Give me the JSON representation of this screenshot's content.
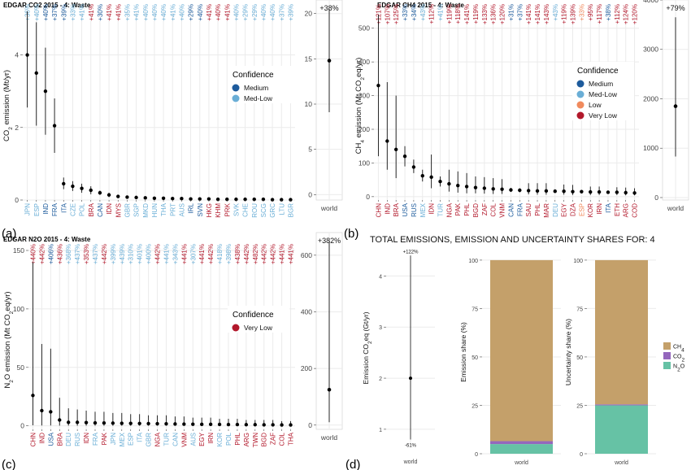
{
  "chart_data": [
    {
      "id": "a",
      "type": "scatter",
      "panel_letter": "(a)",
      "title": "EDGAR CO2 2015 - 4: Waste",
      "ylabel_parts": [
        "CO",
        "2",
        " emission (Mt/yr)"
      ],
      "ylim": [
        0,
        5.2
      ],
      "yticks": [
        0,
        2,
        4
      ],
      "legend": {
        "title": "Confidence",
        "entries": [
          {
            "name": "Medium",
            "color": "#1d5b9c"
          },
          {
            "name": "Med-Low",
            "color": "#6aaed6"
          }
        ]
      },
      "categories": [
        "JPN",
        "ESP",
        "IND",
        "FRA",
        "ITA",
        "CZE",
        "POL",
        "BRA",
        "CAN",
        "IDN",
        "MYS",
        "GBR",
        "SGP",
        "MKD",
        "HUN",
        "THA",
        "PRT",
        "AUS",
        "IRL",
        "SVN",
        "HKG",
        "KHM",
        "PRK",
        "SVK",
        "CHE",
        "ROU",
        "SCG",
        "GRC",
        "LTU",
        "BGR"
      ],
      "cat_colors": [
        "#6aaed6",
        "#6aaed6",
        "#1d5b9c",
        "#1d5b9c",
        "#1d5b9c",
        "#6aaed6",
        "#6aaed6",
        "#b2182b",
        "#1d5b9c",
        "#b2182b",
        "#b2182b",
        "#6aaed6",
        "#6aaed6",
        "#6aaed6",
        "#6aaed6",
        "#6aaed6",
        "#6aaed6",
        "#6aaed6",
        "#1d5b9c",
        "#1d5b9c",
        "#b2182b",
        "#b2182b",
        "#b2182b",
        "#6aaed6",
        "#6aaed6",
        "#6aaed6",
        "#6aaed6",
        "#6aaed6",
        "#6aaed6",
        "#6aaed6"
      ],
      "labels": [
        "+36%",
        "+40%",
        "+40%",
        "+37%",
        "+39%",
        "+33%",
        "+41%",
        "+41%",
        "+30%",
        "+41%",
        "+41%",
        "+35%",
        "+41%",
        "+40%",
        "+40%",
        "+40%",
        "+41%",
        "+40%",
        "+29%",
        "+40%",
        "+41%",
        "+40%",
        "+41%",
        "+40%",
        "+29%",
        "+29%",
        "+40%",
        "+40%",
        "+37%",
        "+39%"
      ],
      "values": [
        4.0,
        3.5,
        3.0,
        2.05,
        0.45,
        0.38,
        0.32,
        0.27,
        0.2,
        0.14,
        0.1,
        0.08,
        0.07,
        0.06,
        0.05,
        0.05,
        0.04,
        0.04,
        0.03,
        0.03,
        0.03,
        0.02,
        0.02,
        0.02,
        0.02,
        0.02,
        0.02,
        0.01,
        0.01,
        0.01
      ],
      "lower": [
        2.55,
        2.05,
        1.8,
        1.3,
        0.3,
        0.25,
        0.2,
        0.16,
        0.14,
        0.08,
        0.06,
        0.05,
        0.04,
        0.04,
        0.03,
        0.03,
        0.02,
        0.02,
        0.02,
        0.02,
        0.02,
        0.01,
        0.01,
        0.01,
        0.01,
        0.01,
        0.01,
        0.01,
        0.01,
        0.01
      ],
      "upper": [
        5.45,
        4.9,
        4.2,
        2.8,
        0.62,
        0.52,
        0.45,
        0.38,
        0.26,
        0.2,
        0.14,
        0.11,
        0.1,
        0.08,
        0.07,
        0.07,
        0.06,
        0.06,
        0.04,
        0.04,
        0.04,
        0.03,
        0.03,
        0.03,
        0.03,
        0.03,
        0.03,
        0.02,
        0.02,
        0.02
      ],
      "world": {
        "label": "world",
        "pct": "+38%",
        "value": 14.8,
        "lower": 9.1,
        "upper": 20.5,
        "ylim": [
          -0.6,
          21.5
        ],
        "yticks": [
          0,
          5,
          10,
          15,
          20
        ]
      }
    },
    {
      "id": "b",
      "type": "scatter",
      "panel_letter": "(b)",
      "title": "EDGAR CH4 2015 - 4: Waste",
      "ylabel_parts": [
        "CH",
        "4",
        " emission (Mt CO",
        "2",
        "eq/yr)"
      ],
      "ylim": [
        -10,
        550
      ],
      "yticks": [
        0,
        100,
        200,
        300,
        400,
        500
      ],
      "legend": {
        "title": "Confidence",
        "entries": [
          {
            "name": "Medium",
            "color": "#1d5b9c"
          },
          {
            "name": "Med-Low",
            "color": "#6aaed6"
          },
          {
            "name": "Low",
            "color": "#f08a5d"
          },
          {
            "name": "Very Low",
            "color": "#b2182b"
          }
        ]
      },
      "categories": [
        "CHN",
        "IND",
        "BRA",
        "USA",
        "RUS",
        "MEX",
        "IDN",
        "TUR",
        "NGA",
        "PAK",
        "PHL",
        "BGD",
        "ZAF",
        "COL",
        "VNM",
        "CAN",
        "FRA",
        "SAU",
        "PHL",
        "MAR",
        "DEU",
        "EGY",
        "DZA",
        "ESP",
        "KOR",
        "IRN",
        "ITA",
        "ETH",
        "ARG",
        "COD"
      ],
      "cat_colors": [
        "#b2182b",
        "#b2182b",
        "#b2182b",
        "#1d5b9c",
        "#1d5b9c",
        "#6aaed6",
        "#b2182b",
        "#6aaed6",
        "#b2182b",
        "#b2182b",
        "#b2182b",
        "#b2182b",
        "#b2182b",
        "#b2182b",
        "#b2182b",
        "#1d5b9c",
        "#1d5b9c",
        "#b2182b",
        "#b2182b",
        "#b2182b",
        "#6aaed6",
        "#b2182b",
        "#b2182b",
        "#f08a5d",
        "#b2182b",
        "#b2182b",
        "#1d5b9c",
        "#b2182b",
        "#b2182b",
        "#b2182b"
      ],
      "labels": [
        "+121%",
        "+107%",
        "+125%",
        "+33%",
        "+34%",
        "+43%",
        "+112%",
        "+41%",
        "+119%",
        "+118%",
        "+141%",
        "+119%",
        "+133%",
        "+136%",
        "+120%",
        "+31%",
        "+37%",
        "+141%",
        "+141%",
        "+143%",
        "+43%",
        "+119%",
        "+139%",
        "+33%",
        "+95%",
        "+117%",
        "+38%",
        "+112%",
        "+124%",
        "+120%"
      ],
      "values": [
        330,
        165,
        140,
        120,
        88,
        62,
        58,
        45,
        38,
        33,
        30,
        27,
        25,
        23,
        22,
        20,
        19,
        18,
        17,
        17,
        16,
        16,
        15,
        15,
        14,
        14,
        13,
        13,
        12,
        11
      ],
      "lower": [
        120,
        80,
        55,
        90,
        70,
        45,
        25,
        30,
        15,
        12,
        10,
        10,
        9,
        8,
        8,
        14,
        13,
        7,
        6,
        6,
        11,
        6,
        5,
        10,
        5,
        5,
        9,
        5,
        4,
        4
      ],
      "upper": [
        540,
        340,
        300,
        150,
        110,
        80,
        125,
        60,
        80,
        75,
        70,
        60,
        58,
        55,
        52,
        26,
        25,
        40,
        40,
        40,
        22,
        36,
        35,
        20,
        30,
        30,
        18,
        28,
        27,
        25
      ],
      "world": {
        "label": "world",
        "pct": "+79%",
        "value": 1850,
        "lower": 830,
        "upper": 3650,
        "ylim": [
          -50,
          4000
        ],
        "yticks": [
          0,
          1000,
          2000,
          3000,
          4000
        ]
      }
    },
    {
      "id": "c",
      "type": "scatter",
      "panel_letter": "(c)",
      "title": "EDGAR N2O 2015 - 4: Waste",
      "ylabel_parts": [
        "N",
        "2",
        "O emission (Mt CO",
        "2",
        "eq/yr)"
      ],
      "ylim": [
        -3,
        150
      ],
      "yticks": [
        0,
        50,
        100,
        150
      ],
      "legend": {
        "title": "Confidence",
        "entries": [
          {
            "name": "Very Low",
            "color": "#b2182b"
          }
        ]
      },
      "categories": [
        "CHN",
        "IND",
        "USA",
        "BRA",
        "DEU",
        "RUS",
        "IDN",
        "FRA",
        "PAK",
        "JPN",
        "MEX",
        "ESP",
        "ITA",
        "GBR",
        "NGA",
        "TUR",
        "CAN",
        "VNM",
        "AUS",
        "EGY",
        "IRN",
        "KOR",
        "POL",
        "PHL",
        "ARG",
        "TWN",
        "BGD",
        "ZAF",
        "COL",
        "THA"
      ],
      "cat_colors": [
        "#b2182b",
        "#b2182b",
        "#1d5b9c",
        "#b2182b",
        "#6aaed6",
        "#6aaed6",
        "#b2182b",
        "#6aaed6",
        "#b2182b",
        "#6aaed6",
        "#6aaed6",
        "#6aaed6",
        "#6aaed6",
        "#6aaed6",
        "#b2182b",
        "#6aaed6",
        "#6aaed6",
        "#b2182b",
        "#6aaed6",
        "#b2182b",
        "#b2182b",
        "#6aaed6",
        "#6aaed6",
        "#b2182b",
        "#b2182b",
        "#b2182b",
        "#b2182b",
        "#b2182b",
        "#b2182b",
        "#b2182b"
      ],
      "labels": [
        "+440%",
        "+442%",
        "+406%",
        "+436%",
        "+368%",
        "+437%",
        "+353%",
        "+437%",
        "+442%",
        "+399%",
        "+439%",
        "+310%",
        "+401%",
        "+400%",
        "+442%",
        "+441%",
        "+343%",
        "+441%",
        "+307%",
        "+441%",
        "+442%",
        "+418%",
        "+398%",
        "+438%",
        "+442%",
        "+482%",
        "+442%",
        "+442%",
        "+441%",
        "+441%"
      ],
      "values": [
        26,
        13,
        12,
        5,
        3,
        3,
        2.8,
        2.5,
        2.4,
        2.3,
        2.2,
        2.1,
        2,
        1.9,
        1.8,
        1.7,
        1.6,
        1.5,
        1.4,
        1.3,
        1.3,
        1.2,
        1.1,
        1.1,
        1,
        1,
        0.9,
        0.9,
        0.8,
        0.8
      ],
      "lower": [
        0.5,
        0.3,
        0.3,
        0.2,
        0.2,
        0.1,
        0.1,
        0.1,
        0.1,
        0.1,
        0.1,
        0.1,
        0.1,
        0.1,
        0.1,
        0.1,
        0.1,
        0.1,
        0.1,
        0.1,
        0.1,
        0.1,
        0.1,
        0.1,
        0.1,
        0.1,
        0.1,
        0.1,
        0.1,
        0.1
      ],
      "upper": [
        140,
        70,
        66,
        24,
        15,
        14,
        13,
        12,
        12,
        11,
        11,
        10,
        10,
        9,
        9,
        9,
        8,
        8,
        7,
        7,
        7,
        6,
        6,
        6,
        5,
        5,
        5,
        5,
        4,
        4
      ],
      "world": {
        "label": "world",
        "pct": "+382%",
        "value": 125,
        "lower": 10,
        "upper": 650,
        "ylim": [
          -15,
          680
        ],
        "yticks": [
          0,
          200,
          400,
          600
        ]
      }
    },
    {
      "id": "d",
      "type": "bar",
      "panel_letter": "(d)",
      "title": "TOTAL EMISSIONS, EMISSION AND UNCERTAINTY SHARES FOR: 4",
      "total": {
        "ylabel_parts": [
          "Emission CO",
          "2",
          "eq (Gt/yr)"
        ],
        "x": "world",
        "value": 2.0,
        "lower": 0.8,
        "upper": 4.4,
        "upper_label": "+122%",
        "lower_label": "-61%",
        "ylim": [
          0.68,
          4.5
        ],
        "yticks": [
          1,
          2,
          3,
          4
        ]
      },
      "shares": {
        "categories": [
          "world"
        ],
        "emission_ylabel": "Emission share (%)",
        "uncertainty_ylabel": "Uncertainty share (%)",
        "ylim": [
          0,
          105
        ],
        "yticks": [
          0,
          25,
          50,
          75,
          100
        ],
        "series": [
          {
            "name_parts": [
              "N",
              "2",
              "O"
            ],
            "color": "#66c2a5",
            "emission": 5,
            "uncertainty": 25
          },
          {
            "name_parts": [
              "CO",
              "2",
              ""
            ],
            "color": "#9467bd",
            "emission": 1.5,
            "uncertainty": 0.5
          },
          {
            "name_parts": [
              "CH",
              "4",
              ""
            ],
            "color": "#c4a06a",
            "emission": 93.5,
            "uncertainty": 74.5
          }
        ]
      }
    }
  ]
}
